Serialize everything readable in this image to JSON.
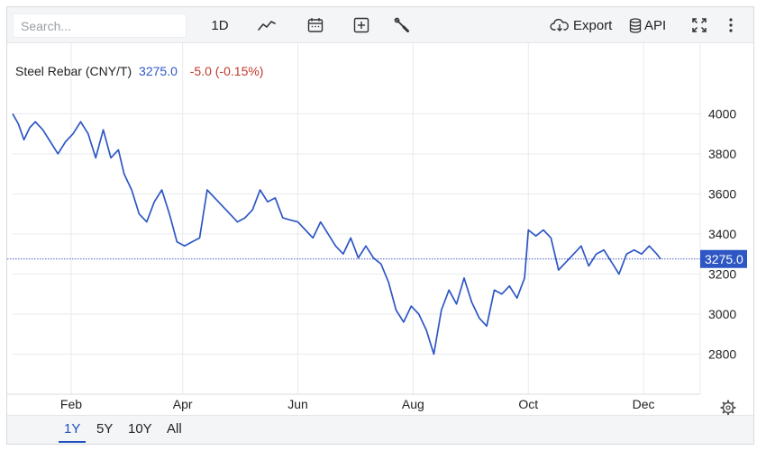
{
  "toolbar": {
    "search_placeholder": "Search...",
    "interval_label": "1D",
    "export_label": "Export",
    "api_label": "API",
    "icons": [
      "line-chart-icon",
      "calendar-icon",
      "plus-box-icon",
      "wrench-icon",
      "cloud-download-icon",
      "database-icon",
      "expand-icon",
      "kebab-menu-icon"
    ]
  },
  "legend": {
    "name": "Steel Rebar (CNY/T)",
    "last": "3275.0",
    "change": "-5.0 (-0.15%)",
    "last_color": "#2e57c4",
    "change_color": "#c0392b"
  },
  "price_tag": "3275.0",
  "footer": {
    "ranges": [
      "1Y",
      "5Y",
      "10Y",
      "All"
    ],
    "active": "1Y"
  },
  "chart_data": {
    "type": "line",
    "title": "Steel Rebar (CNY/T)",
    "xlabel": "",
    "ylabel": "",
    "x_ticks": [
      "Feb",
      "Apr",
      "Jun",
      "Aug",
      "Oct",
      "Dec"
    ],
    "x_tick_dates": [
      "2025-02-01",
      "2025-04-01",
      "2025-06-01",
      "2025-08-01",
      "2025-10-01",
      "2025-12-01"
    ],
    "y_ticks": [
      2800,
      3000,
      3200,
      3400,
      3600,
      3800,
      4000
    ],
    "xlim": [
      "2025-01-01",
      "2025-12-31"
    ],
    "ylim": [
      2600,
      4150
    ],
    "grid": true,
    "last_value": 3275.0,
    "line_color": "#2e57c4",
    "series": [
      {
        "x": [
          "2025-01-01",
          "2025-01-04",
          "2025-01-07",
          "2025-01-10",
          "2025-01-13",
          "2025-01-17",
          "2025-01-21",
          "2025-01-25",
          "2025-01-29",
          "2025-02-02",
          "2025-02-06",
          "2025-02-10",
          "2025-02-14",
          "2025-02-18",
          "2025-02-22",
          "2025-02-26",
          "2025-03-01",
          "2025-03-05",
          "2025-03-09",
          "2025-03-13",
          "2025-03-17",
          "2025-03-21",
          "2025-03-25",
          "2025-03-29",
          "2025-04-02",
          "2025-04-06",
          "2025-04-10",
          "2025-04-14",
          "2025-04-18",
          "2025-04-22",
          "2025-04-26",
          "2025-04-30",
          "2025-05-04",
          "2025-05-08",
          "2025-05-12",
          "2025-05-16",
          "2025-05-20",
          "2025-05-24",
          "2025-05-28",
          "2025-06-01",
          "2025-06-05",
          "2025-06-09",
          "2025-06-13",
          "2025-06-17",
          "2025-06-21",
          "2025-06-25",
          "2025-06-29",
          "2025-07-03",
          "2025-07-07",
          "2025-07-11",
          "2025-07-15",
          "2025-07-19",
          "2025-07-23",
          "2025-07-27",
          "2025-07-31",
          "2025-08-04",
          "2025-08-08",
          "2025-08-12",
          "2025-08-16",
          "2025-08-20",
          "2025-08-24",
          "2025-08-28",
          "2025-09-01",
          "2025-09-05",
          "2025-09-09",
          "2025-09-13",
          "2025-09-17",
          "2025-09-21",
          "2025-09-25",
          "2025-09-29",
          "2025-10-01",
          "2025-10-05",
          "2025-10-09",
          "2025-10-13",
          "2025-10-17",
          "2025-10-21",
          "2025-10-25",
          "2025-10-29",
          "2025-11-02",
          "2025-11-06",
          "2025-11-10",
          "2025-11-14",
          "2025-11-18",
          "2025-11-22",
          "2025-11-26",
          "2025-11-30",
          "2025-12-04",
          "2025-12-08",
          "2025-12-10"
        ],
        "y": [
          4000,
          3950,
          3870,
          3930,
          3960,
          3920,
          3860,
          3800,
          3860,
          3900,
          3960,
          3900,
          3780,
          3920,
          3780,
          3820,
          3700,
          3620,
          3500,
          3460,
          3560,
          3620,
          3500,
          3360,
          3340,
          3360,
          3380,
          3620,
          3580,
          3540,
          3500,
          3460,
          3480,
          3520,
          3620,
          3560,
          3580,
          3480,
          3470,
          3460,
          3420,
          3380,
          3460,
          3400,
          3340,
          3300,
          3380,
          3280,
          3340,
          3280,
          3250,
          3160,
          3020,
          2960,
          3040,
          3000,
          2920,
          2800,
          3020,
          3120,
          3050,
          3180,
          3060,
          2980,
          2940,
          3120,
          3100,
          3140,
          3080,
          3180,
          3420,
          3390,
          3420,
          3380,
          3220,
          3260,
          3300,
          3340,
          3240,
          3300,
          3320,
          3260,
          3200,
          3300,
          3320,
          3300,
          3340,
          3300,
          3275
        ]
      }
    ]
  }
}
